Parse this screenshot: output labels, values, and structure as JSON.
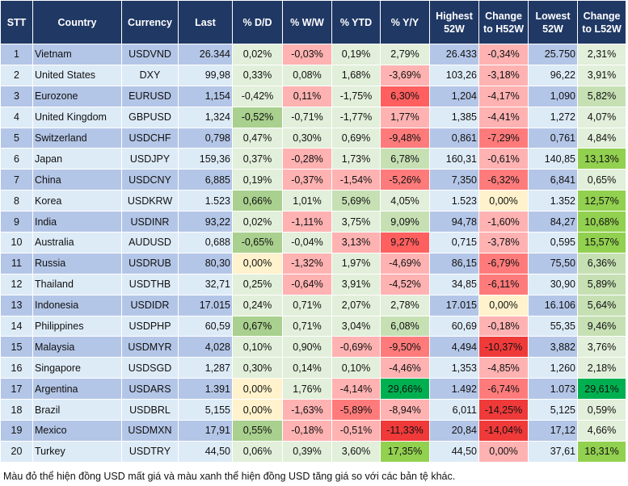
{
  "headers": [
    "STT",
    "Country",
    "Currency",
    "Last",
    "% D/D",
    "% W/W",
    "% YTD",
    "% Y/Y",
    "Highest 52W",
    "Change to H52W",
    "Lowest 52W",
    "Change to L52W"
  ],
  "palette": {
    "lg": "#e2efda",
    "g1": "#c6e0b4",
    "g2": "#a9d08e",
    "g3": "#92d050",
    "g4": "#00b050",
    "p": "#ffb2b2",
    "r1": "#ff7b7b",
    "r2": "#ff5f5f",
    "r3": "#f03a3a",
    "y": "#fff2cc",
    "rowDark": "#b4c6e7",
    "rowLight": "#ddebf7",
    "header": "#203864"
  },
  "rows": [
    {
      "stt": "1",
      "country": "Vietnam",
      "currency": "USDVND",
      "last": "26.344",
      "dd": "0,02%",
      "ww": "-0,03%",
      "ytd": "0,19%",
      "yy": "2,79%",
      "high": "26.433",
      "chH": "-0,34%",
      "low": "25.750",
      "chL": "2,31%",
      "colors": [
        "lg",
        "p",
        "lg",
        "lg",
        "p",
        "lg"
      ]
    },
    {
      "stt": "2",
      "country": "United States",
      "currency": "DXY",
      "last": "99,98",
      "dd": "0,33%",
      "ww": "0,08%",
      "ytd": "1,68%",
      "yy": "-3,69%",
      "high": "103,26",
      "chH": "-3,18%",
      "low": "96,22",
      "chL": "3,91%",
      "colors": [
        "lg",
        "lg",
        "lg",
        "p",
        "p",
        "lg"
      ]
    },
    {
      "stt": "3",
      "country": "Eurozone",
      "currency": "EURUSD",
      "last": "1,154",
      "dd": "-0,42%",
      "ww": "0,11%",
      "ytd": "-1,75%",
      "yy": "6,30%",
      "high": "1,204",
      "chH": "-4,17%",
      "low": "1,090",
      "chL": "5,82%",
      "colors": [
        "lg",
        "p",
        "lg",
        "r2",
        "p",
        "g1"
      ]
    },
    {
      "stt": "4",
      "country": "United Kingdom",
      "currency": "GBPUSD",
      "last": "1,324",
      "dd": "-0,52%",
      "ww": "-0,71%",
      "ytd": "-1,77%",
      "yy": "1,77%",
      "high": "1,385",
      "chH": "-4,41%",
      "low": "1,272",
      "chL": "4,07%",
      "colors": [
        "g2",
        "lg",
        "lg",
        "p",
        "p",
        "lg"
      ]
    },
    {
      "stt": "5",
      "country": "Switzerland",
      "currency": "USDCHF",
      "last": "0,798",
      "dd": "0,47%",
      "ww": "0,30%",
      "ytd": "0,69%",
      "yy": "-9,48%",
      "high": "0,861",
      "chH": "-7,29%",
      "low": "0,761",
      "chL": "4,84%",
      "colors": [
        "lg",
        "lg",
        "lg",
        "r1",
        "r1",
        "lg"
      ]
    },
    {
      "stt": "6",
      "country": "Japan",
      "currency": "USDJPY",
      "last": "159,36",
      "dd": "0,37%",
      "ww": "-0,28%",
      "ytd": "1,73%",
      "yy": "6,78%",
      "high": "160,31",
      "chH": "-0,61%",
      "low": "140,85",
      "chL": "13,13%",
      "colors": [
        "lg",
        "p",
        "lg",
        "g1",
        "p",
        "g3"
      ]
    },
    {
      "stt": "7",
      "country": "China",
      "currency": "USDCNY",
      "last": "6,885",
      "dd": "0,19%",
      "ww": "-0,37%",
      "ytd": "-1,54%",
      "yy": "-5,26%",
      "high": "7,350",
      "chH": "-6,32%",
      "low": "6,841",
      "chL": "0,65%",
      "colors": [
        "lg",
        "p",
        "p",
        "r1",
        "r1",
        "lg"
      ]
    },
    {
      "stt": "8",
      "country": "Korea",
      "currency": "USDKRW",
      "last": "1.523",
      "dd": "0,66%",
      "ww": "1,01%",
      "ytd": "5,69%",
      "yy": "4,05%",
      "high": "1.523",
      "chH": "0,00%",
      "low": "1.352",
      "chL": "12,57%",
      "colors": [
        "g2",
        "lg",
        "g1",
        "lg",
        "y",
        "g3"
      ]
    },
    {
      "stt": "9",
      "country": "India",
      "currency": "USDINR",
      "last": "93,22",
      "dd": "0,02%",
      "ww": "-1,11%",
      "ytd": "3,75%",
      "yy": "9,09%",
      "high": "94,78",
      "chH": "-1,60%",
      "low": "84,27",
      "chL": "10,68%",
      "colors": [
        "lg",
        "p",
        "lg",
        "g1",
        "p",
        "g3"
      ]
    },
    {
      "stt": "10",
      "country": "Australia",
      "currency": "AUDUSD",
      "last": "0,688",
      "dd": "-0,65%",
      "ww": "-0,04%",
      "ytd": "3,13%",
      "yy": "9,27%",
      "high": "0,715",
      "chH": "-3,78%",
      "low": "0,595",
      "chL": "15,57%",
      "colors": [
        "g2",
        "lg",
        "p",
        "r2",
        "p",
        "g3"
      ]
    },
    {
      "stt": "11",
      "country": "Russia",
      "currency": "USDRUB",
      "last": "80,30",
      "dd": "0,00%",
      "ww": "-1,32%",
      "ytd": "1,97%",
      "yy": "-4,69%",
      "high": "86,15",
      "chH": "-6,79%",
      "low": "75,50",
      "chL": "6,36%",
      "colors": [
        "y",
        "p",
        "lg",
        "p",
        "r1",
        "g1"
      ]
    },
    {
      "stt": "12",
      "country": "Thailand",
      "currency": "USDTHB",
      "last": "32,71",
      "dd": "0,25%",
      "ww": "-0,64%",
      "ytd": "3,91%",
      "yy": "-4,52%",
      "high": "34,85",
      "chH": "-6,11%",
      "low": "30,90",
      "chL": "5,89%",
      "colors": [
        "lg",
        "p",
        "lg",
        "p",
        "r1",
        "g1"
      ]
    },
    {
      "stt": "13",
      "country": "Indonesia",
      "currency": "USDIDR",
      "last": "17.015",
      "dd": "0,24%",
      "ww": "0,71%",
      "ytd": "2,07%",
      "yy": "2,78%",
      "high": "17.015",
      "chH": "0,00%",
      "low": "16.106",
      "chL": "5,64%",
      "colors": [
        "lg",
        "lg",
        "lg",
        "lg",
        "y",
        "g1"
      ]
    },
    {
      "stt": "14",
      "country": "Philippines",
      "currency": "USDPHP",
      "last": "60,59",
      "dd": "0,67%",
      "ww": "0,71%",
      "ytd": "3,04%",
      "yy": "6,08%",
      "high": "60,69",
      "chH": "-0,18%",
      "low": "55,35",
      "chL": "9,46%",
      "colors": [
        "g2",
        "lg",
        "lg",
        "g1",
        "p",
        "g1"
      ]
    },
    {
      "stt": "15",
      "country": "Malaysia",
      "currency": "USDMYR",
      "last": "4,028",
      "dd": "0,10%",
      "ww": "0,90%",
      "ytd": "-0,69%",
      "yy": "-9,50%",
      "high": "4,494",
      "chH": "-10,37%",
      "low": "3,882",
      "chL": "3,76%",
      "colors": [
        "lg",
        "lg",
        "p",
        "r1",
        "r3",
        "lg"
      ]
    },
    {
      "stt": "16",
      "country": "Singapore",
      "currency": "USDSGD",
      "last": "1,287",
      "dd": "0,30%",
      "ww": "0,14%",
      "ytd": "0,10%",
      "yy": "-4,46%",
      "high": "1,353",
      "chH": "-4,85%",
      "low": "1,260",
      "chL": "2,18%",
      "colors": [
        "lg",
        "lg",
        "lg",
        "p",
        "p",
        "lg"
      ]
    },
    {
      "stt": "17",
      "country": "Argentina",
      "currency": "USDARS",
      "last": "1.391",
      "dd": "0,00%",
      "ww": "1,76%",
      "ytd": "-4,14%",
      "yy": "29,66%",
      "high": "1.492",
      "chH": "-6,74%",
      "low": "1.073",
      "chL": "29,61%",
      "colors": [
        "y",
        "lg",
        "p",
        "g4",
        "r1",
        "g4"
      ]
    },
    {
      "stt": "18",
      "country": "Brazil",
      "currency": "USDBRL",
      "last": "5,155",
      "dd": "0,00%",
      "ww": "-1,63%",
      "ytd": "-5,89%",
      "yy": "-8,94%",
      "high": "6,011",
      "chH": "-14,25%",
      "low": "5,125",
      "chL": "0,59%",
      "colors": [
        "y",
        "p",
        "r1",
        "p",
        "r3",
        "lg"
      ]
    },
    {
      "stt": "19",
      "country": "Mexico",
      "currency": "USDMXN",
      "last": "17,91",
      "dd": "0,55%",
      "ww": "-0,18%",
      "ytd": "-0,51%",
      "yy": "-11,33%",
      "high": "20,84",
      "chH": "-14,04%",
      "low": "17,12",
      "chL": "4,66%",
      "colors": [
        "g2",
        "p",
        "p",
        "r3",
        "r3",
        "lg"
      ]
    },
    {
      "stt": "20",
      "country": "Turkey",
      "currency": "USDTRY",
      "last": "44,50",
      "dd": "0,06%",
      "ww": "0,39%",
      "ytd": "3,60%",
      "yy": "17,35%",
      "high": "44,50",
      "chH": "0,00%",
      "low": "37,61",
      "chL": "18,31%",
      "colors": [
        "lg",
        "lg",
        "lg",
        "g3",
        "p",
        "g3"
      ]
    }
  ],
  "footnote": "Màu đỏ thể hiện đồng USD mất giá và màu xanh thể hiện đồng USD tăng giá so với các bản tệ khác."
}
